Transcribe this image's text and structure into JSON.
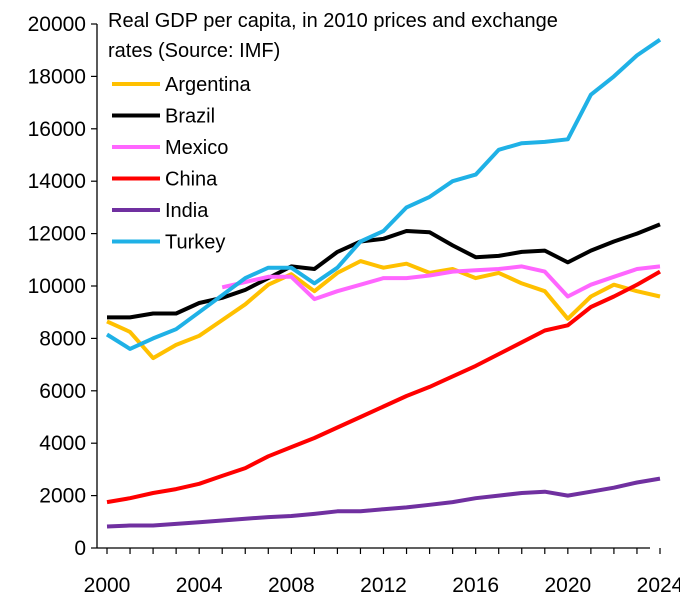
{
  "chart_data": {
    "type": "line",
    "title": "Real GDP per capita, in 2010 prices and exchange rates (Source: IMF)",
    "title_lines": [
      "Real GDP per capita, in 2010 prices and exchange",
      "rates (Source: IMF)"
    ],
    "xlabel": "",
    "ylabel": "",
    "ylim": [
      0,
      20000
    ],
    "yticks": [
      0,
      2000,
      4000,
      6000,
      8000,
      10000,
      12000,
      14000,
      16000,
      18000,
      20000
    ],
    "xlim": [
      2000,
      2024
    ],
    "xticks": [
      2000,
      2004,
      2008,
      2012,
      2016,
      2020,
      2024
    ],
    "grid": false,
    "legend_position": "top-left",
    "series": [
      {
        "name": "Argentina",
        "color": "#FFC000",
        "x": [
          2000,
          2001,
          2002,
          2003,
          2004,
          2005,
          2006,
          2007,
          2008,
          2009,
          2010,
          2011,
          2012,
          2013,
          2014,
          2015,
          2016,
          2017,
          2018,
          2019,
          2020,
          2021,
          2022,
          2023,
          2024
        ],
        "values": [
          8650,
          8250,
          7250,
          7750,
          8100,
          8700,
          9300,
          10050,
          10450,
          9800,
          10500,
          10950,
          10700,
          10850,
          10500,
          10650,
          10300,
          10500,
          10100,
          9800,
          8750,
          9600,
          10050,
          9800,
          9600
        ]
      },
      {
        "name": "Brazil",
        "color": "#000000",
        "x": [
          2000,
          2001,
          2002,
          2003,
          2004,
          2005,
          2006,
          2007,
          2008,
          2009,
          2010,
          2011,
          2012,
          2013,
          2014,
          2015,
          2016,
          2017,
          2018,
          2019,
          2020,
          2021,
          2022,
          2023,
          2024
        ],
        "values": [
          8800,
          8800,
          8950,
          8950,
          9350,
          9550,
          9850,
          10300,
          10750,
          10650,
          11300,
          11700,
          11800,
          12100,
          12050,
          11550,
          11100,
          11150,
          11300,
          11350,
          10900,
          11350,
          11700,
          12000,
          12350
        ]
      },
      {
        "name": "Mexico",
        "color": "#FF66FF",
        "x": [
          2005,
          2006,
          2007,
          2008,
          2009,
          2010,
          2011,
          2012,
          2013,
          2014,
          2015,
          2016,
          2017,
          2018,
          2019,
          2020,
          2021,
          2022,
          2023,
          2024
        ],
        "values": [
          9950,
          10150,
          10350,
          10350,
          9500,
          9800,
          10050,
          10300,
          10300,
          10400,
          10550,
          10600,
          10650,
          10750,
          10550,
          9600,
          10050,
          10350,
          10650,
          10750
        ]
      },
      {
        "name": "China",
        "color": "#FF0000",
        "x": [
          2000,
          2001,
          2002,
          2003,
          2004,
          2005,
          2006,
          2007,
          2008,
          2009,
          2010,
          2011,
          2012,
          2013,
          2014,
          2015,
          2016,
          2017,
          2018,
          2019,
          2020,
          2021,
          2022,
          2023,
          2024
        ],
        "values": [
          1750,
          1900,
          2100,
          2250,
          2450,
          2750,
          3050,
          3500,
          3850,
          4200,
          4600,
          5000,
          5400,
          5800,
          6150,
          6550,
          6950,
          7400,
          7850,
          8300,
          8500,
          9200,
          9600,
          10050,
          10550
        ]
      },
      {
        "name": "India",
        "color": "#7030A0",
        "x": [
          2000,
          2001,
          2002,
          2003,
          2004,
          2005,
          2006,
          2007,
          2008,
          2009,
          2010,
          2011,
          2012,
          2013,
          2014,
          2015,
          2016,
          2017,
          2018,
          2019,
          2020,
          2021,
          2022,
          2023,
          2024
        ],
        "values": [
          820,
          860,
          860,
          920,
          980,
          1050,
          1120,
          1180,
          1220,
          1300,
          1400,
          1400,
          1480,
          1550,
          1650,
          1750,
          1900,
          2000,
          2100,
          2150,
          2000,
          2150,
          2300,
          2500,
          2650
        ]
      },
      {
        "name": "Turkey",
        "color": "#1FB1E6",
        "x": [
          2000,
          2001,
          2002,
          2003,
          2004,
          2005,
          2006,
          2007,
          2008,
          2009,
          2010,
          2011,
          2012,
          2013,
          2014,
          2015,
          2016,
          2017,
          2018,
          2019,
          2020,
          2021,
          2022,
          2023,
          2024
        ],
        "values": [
          8150,
          7600,
          8000,
          8350,
          9000,
          9650,
          10300,
          10700,
          10700,
          10100,
          10700,
          11700,
          12100,
          13000,
          13400,
          14000,
          14250,
          15200,
          15450,
          15500,
          15600,
          17300,
          18000,
          18800,
          19400
        ]
      }
    ]
  }
}
